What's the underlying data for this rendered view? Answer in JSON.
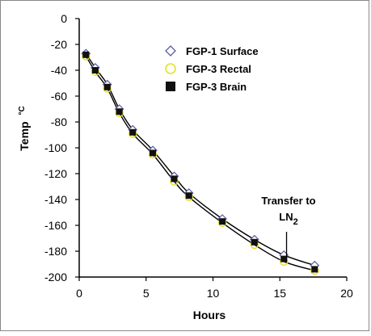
{
  "chart_data": {
    "type": "scatter",
    "xlabel": "Hours",
    "ylabel": "Temp",
    "ylabel_unit": "°C",
    "xlim": [
      0,
      20
    ],
    "ylim": [
      -200,
      0
    ],
    "x_ticks": [
      "0",
      "5",
      "10",
      "15",
      "20"
    ],
    "y_ticks": [
      "0",
      "-20",
      "-40",
      "-60",
      "-80",
      "-100",
      "-120",
      "-140",
      "-160",
      "-180",
      "-200"
    ],
    "grid": false,
    "legend_position": "top-center",
    "series": [
      {
        "name": "FGP-1 Surface",
        "marker": "diamond-open",
        "color": "#5a5aa0",
        "x": [
          0.5,
          1.2,
          2.1,
          3.0,
          4.0,
          5.5,
          7.1,
          8.2,
          10.7,
          13.1,
          15.3,
          17.6
        ],
        "y": [
          -27,
          -38,
          -51,
          -70,
          -86,
          -102,
          -122,
          -135,
          -155,
          -171,
          -183,
          -191
        ]
      },
      {
        "name": "FGP-3 Rectal",
        "marker": "circle-open",
        "color": "#e6e028",
        "x": [
          0.5,
          1.2,
          2.1,
          3.0,
          4.0,
          5.5,
          7.1,
          8.2,
          10.7,
          13.1,
          15.3,
          17.6
        ],
        "y": [
          -29,
          -41,
          -54,
          -73,
          -89,
          -105,
          -126,
          -138,
          -158,
          -175,
          -188,
          -195
        ]
      },
      {
        "name": "FGP-3 Brain",
        "marker": "square-filled",
        "color": "#111111",
        "x": [
          0.5,
          1.2,
          2.1,
          3.0,
          4.0,
          5.5,
          7.1,
          8.2,
          10.7,
          13.1,
          15.3,
          17.6
        ],
        "y": [
          -28,
          -40,
          -53,
          -72,
          -88,
          -104,
          -124,
          -137,
          -157,
          -173,
          -186,
          -194
        ]
      }
    ],
    "annotations": [
      {
        "text": "Transfer to",
        "text_sub_prefix": "LN",
        "text_sub": "2",
        "x": 15.5,
        "y_from": -165,
        "y_to": -188
      }
    ]
  }
}
